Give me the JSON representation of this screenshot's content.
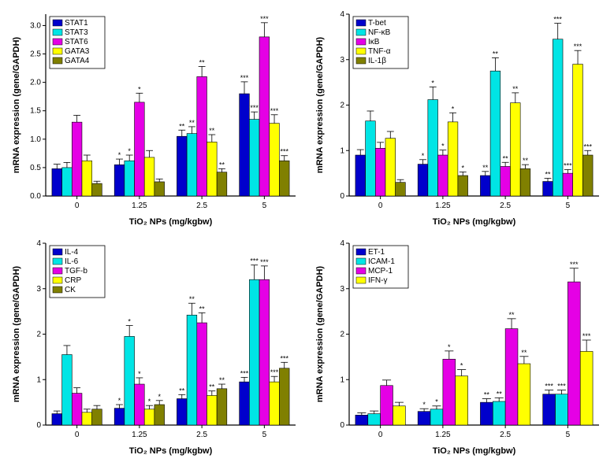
{
  "global": {
    "xlabel": "TiO₂ NPs (mg/kgbw)",
    "ylabel": "mRNA expression (gene/GAPDH)",
    "categories": [
      "0",
      "1.25",
      "2.5",
      "5"
    ],
    "bar_width": 0.15,
    "axis_color": "#000000",
    "tick_fontsize": 10,
    "label_fontsize": 11,
    "legend_fontsize": 10,
    "background_color": "#ffffff",
    "grid": false
  },
  "colors": {
    "blue": "#0000cc",
    "cyan": "#00e5e5",
    "magenta": "#e500e5",
    "yellow": "#ffff00",
    "olive": "#808000"
  },
  "panels": [
    {
      "id": "A",
      "ylim": [
        0,
        3.2
      ],
      "ytick_step": 0.5,
      "series": [
        {
          "label": "STAT1",
          "color": "#0000cc",
          "values": [
            0.48,
            0.55,
            1.05,
            1.8
          ],
          "err": [
            0.08,
            0.1,
            0.11,
            0.21
          ],
          "sig": [
            "",
            "*",
            "**",
            "***"
          ]
        },
        {
          "label": "STAT3",
          "color": "#00e5e5",
          "values": [
            0.5,
            0.62,
            1.1,
            1.35
          ],
          "err": [
            0.09,
            0.1,
            0.12,
            0.13
          ],
          "sig": [
            "",
            "*",
            "**",
            "***"
          ]
        },
        {
          "label": "STAT6",
          "color": "#e500e5",
          "values": [
            1.3,
            1.65,
            2.1,
            2.8
          ],
          "err": [
            0.12,
            0.16,
            0.18,
            0.25
          ],
          "sig": [
            "",
            "*",
            "**",
            "***"
          ]
        },
        {
          "label": "GATA3",
          "color": "#ffff00",
          "values": [
            0.62,
            0.68,
            0.95,
            1.28
          ],
          "err": [
            0.1,
            0.12,
            0.13,
            0.15
          ],
          "sig": [
            "",
            "",
            "**",
            "***"
          ]
        },
        {
          "label": "GATA4",
          "color": "#808000",
          "values": [
            0.22,
            0.25,
            0.42,
            0.62
          ],
          "err": [
            0.04,
            0.05,
            0.06,
            0.09
          ],
          "sig": [
            "",
            "",
            "**",
            "***"
          ]
        }
      ]
    },
    {
      "id": "B",
      "ylim": [
        0,
        4.0
      ],
      "ytick_step": 1.0,
      "series": [
        {
          "label": "T-bet",
          "color": "#0000cc",
          "values": [
            0.9,
            0.7,
            0.45,
            0.32
          ],
          "err": [
            0.12,
            0.1,
            0.09,
            0.07
          ],
          "sig": [
            "",
            "*",
            "**",
            "**"
          ]
        },
        {
          "label": "NF-κB",
          "color": "#00e5e5",
          "values": [
            1.65,
            2.12,
            2.75,
            3.45
          ],
          "err": [
            0.22,
            0.28,
            0.29,
            0.35
          ],
          "sig": [
            "",
            "*",
            "**",
            "***"
          ]
        },
        {
          "label": "IκB",
          "color": "#e500e5",
          "values": [
            1.05,
            0.9,
            0.65,
            0.5
          ],
          "err": [
            0.13,
            0.11,
            0.09,
            0.08
          ],
          "sig": [
            "",
            "*",
            "**",
            "***"
          ]
        },
        {
          "label": "TNF-α",
          "color": "#ffff00",
          "values": [
            1.27,
            1.63,
            2.05,
            2.9
          ],
          "err": [
            0.15,
            0.2,
            0.22,
            0.3
          ],
          "sig": [
            "",
            "*",
            "**",
            "***"
          ]
        },
        {
          "label": "IL-1β",
          "color": "#808000",
          "values": [
            0.3,
            0.45,
            0.6,
            0.9
          ],
          "err": [
            0.06,
            0.08,
            0.09,
            0.1
          ],
          "sig": [
            "",
            "*",
            "**",
            "***"
          ]
        }
      ]
    },
    {
      "id": "C",
      "ylim": [
        0,
        4.0
      ],
      "ytick_step": 1.0,
      "series": [
        {
          "label": "IL-4",
          "color": "#0000cc",
          "values": [
            0.25,
            0.37,
            0.58,
            0.95
          ],
          "err": [
            0.06,
            0.08,
            0.09,
            0.1
          ],
          "sig": [
            "",
            "*",
            "**",
            "***"
          ]
        },
        {
          "label": "IL-6",
          "color": "#00e5e5",
          "values": [
            1.55,
            1.95,
            2.42,
            3.2
          ],
          "err": [
            0.2,
            0.24,
            0.26,
            0.32
          ],
          "sig": [
            "",
            "*",
            "**",
            "***"
          ]
        },
        {
          "label": "TGF-b",
          "color": "#e500e5",
          "values": [
            0.7,
            0.9,
            2.25,
            3.2
          ],
          "err": [
            0.12,
            0.14,
            0.22,
            0.3
          ],
          "sig": [
            "",
            "*",
            "**",
            "***"
          ]
        },
        {
          "label": "CRP",
          "color": "#ffff00",
          "values": [
            0.28,
            0.35,
            0.65,
            0.95
          ],
          "err": [
            0.07,
            0.08,
            0.1,
            0.12
          ],
          "sig": [
            "",
            "*",
            "**",
            "***"
          ]
        },
        {
          "label": "CK",
          "color": "#808000",
          "values": [
            0.35,
            0.45,
            0.8,
            1.25
          ],
          "err": [
            0.08,
            0.09,
            0.1,
            0.13
          ],
          "sig": [
            "",
            "*",
            "**",
            "***"
          ]
        }
      ]
    },
    {
      "id": "D",
      "ylim": [
        0,
        4.0
      ],
      "ytick_step": 1.0,
      "series": [
        {
          "label": "ET-1",
          "color": "#0000cc",
          "values": [
            0.22,
            0.3,
            0.5,
            0.68
          ],
          "err": [
            0.05,
            0.06,
            0.08,
            0.09
          ],
          "sig": [
            "",
            "*",
            "**",
            "***"
          ]
        },
        {
          "label": "ICAM-1",
          "color": "#00e5e5",
          "values": [
            0.25,
            0.35,
            0.52,
            0.68
          ],
          "err": [
            0.06,
            0.07,
            0.08,
            0.09
          ],
          "sig": [
            "",
            "*",
            "**",
            "***"
          ]
        },
        {
          "label": "MCP-1",
          "color": "#e500e5",
          "values": [
            0.87,
            1.45,
            2.12,
            3.15
          ],
          "err": [
            0.12,
            0.18,
            0.22,
            0.3
          ],
          "sig": [
            "",
            "*",
            "**",
            "***"
          ]
        },
        {
          "label": "IFN-γ",
          "color": "#ffff00",
          "values": [
            0.42,
            1.08,
            1.35,
            1.62
          ],
          "err": [
            0.08,
            0.14,
            0.16,
            0.25
          ],
          "sig": [
            "",
            "*",
            "**",
            "***"
          ]
        }
      ]
    }
  ]
}
